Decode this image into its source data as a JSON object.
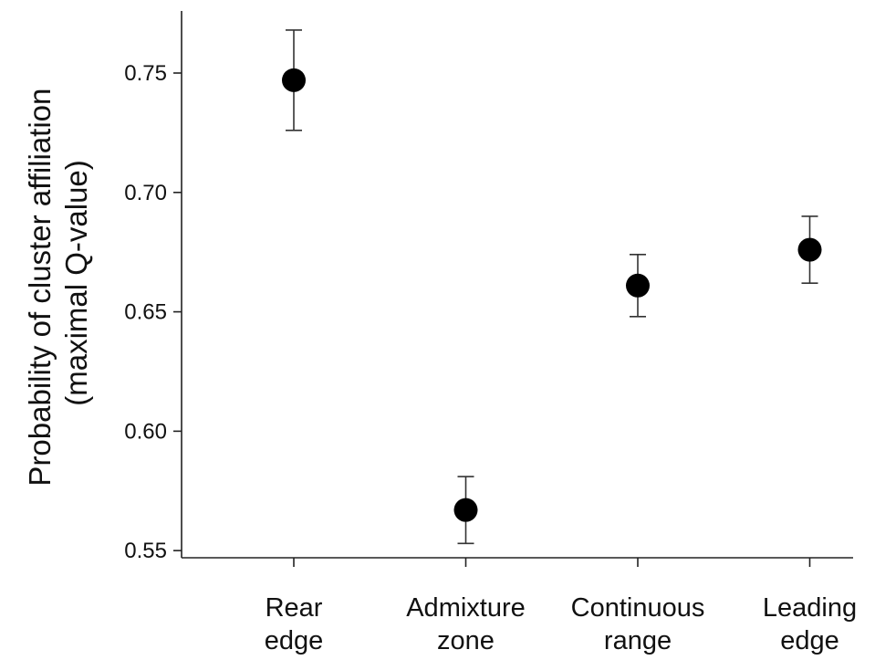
{
  "chart_data": {
    "type": "scatter",
    "title": "",
    "xlabel": "",
    "ylabel": [
      "Probability of cluster affiliation",
      "(maximal Q-value)"
    ],
    "ylim": [
      0.547,
      0.776
    ],
    "yticks": [
      0.55,
      0.6,
      0.65,
      0.7,
      0.75
    ],
    "ytick_labels": [
      "0.55",
      "0.60",
      "0.65",
      "0.70",
      "0.75"
    ],
    "categories": [
      [
        "Rear",
        "edge"
      ],
      [
        "Admixture",
        "zone"
      ],
      [
        "Continuous",
        "range"
      ],
      [
        "Leading",
        "edge"
      ]
    ],
    "values": [
      0.747,
      0.567,
      0.661,
      0.676
    ],
    "error_low": [
      0.726,
      0.553,
      0.648,
      0.662
    ],
    "error_high": [
      0.768,
      0.581,
      0.674,
      0.69
    ],
    "grid": false,
    "marker_color": "#000000"
  }
}
